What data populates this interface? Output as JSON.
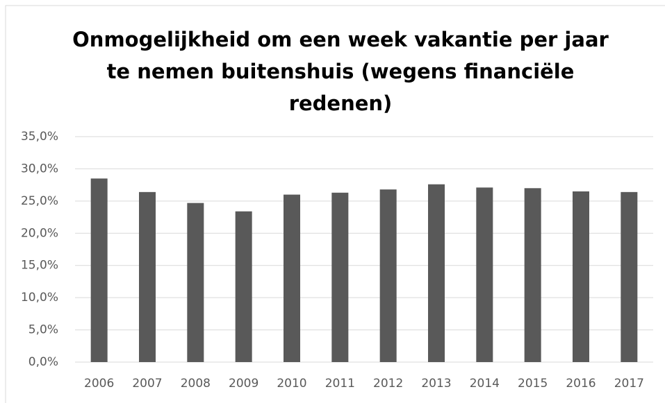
{
  "chart_data": {
    "type": "bar",
    "title": "Onmogelijkheid om een week vakantie per jaar te nemen buitenshuis (wegens financiële redenen)",
    "categories": [
      "2006",
      "2007",
      "2008",
      "2009",
      "2010",
      "2011",
      "2012",
      "2013",
      "2014",
      "2015",
      "2016",
      "2017"
    ],
    "values": [
      28.5,
      26.4,
      24.7,
      23.4,
      26.0,
      26.3,
      26.8,
      27.6,
      27.1,
      27.0,
      26.5,
      26.4
    ],
    "color": "#595959",
    "ylim": [
      0,
      35
    ],
    "yticks": [
      {
        "value": 0,
        "label": "0,0%"
      },
      {
        "value": 5,
        "label": "5,0%"
      },
      {
        "value": 10,
        "label": "10,0%"
      },
      {
        "value": 15,
        "label": "15,0%"
      },
      {
        "value": 20,
        "label": "20,0%"
      },
      {
        "value": 25,
        "label": "25,0%"
      },
      {
        "value": 30,
        "label": "30,0%"
      },
      {
        "value": 35,
        "label": "35,0%"
      }
    ],
    "grid": true
  }
}
